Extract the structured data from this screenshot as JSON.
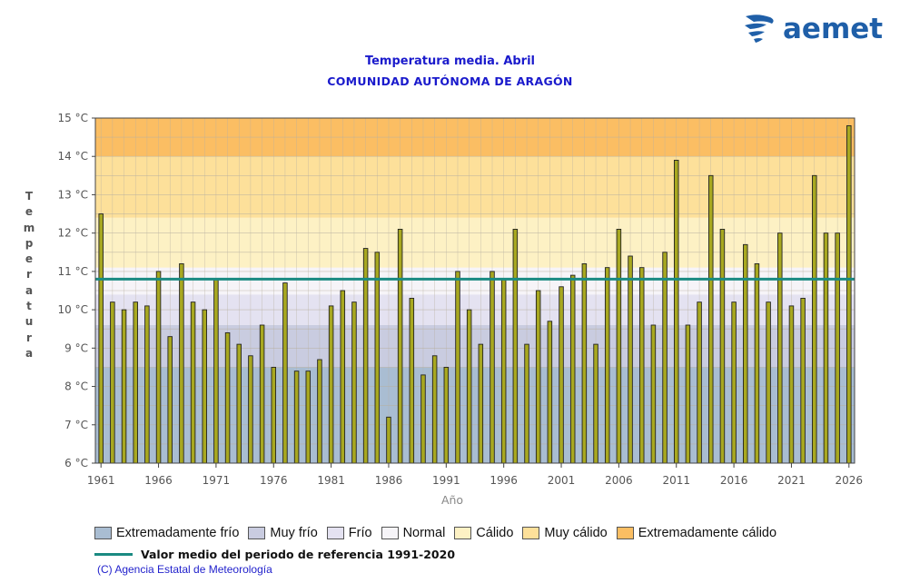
{
  "brand": {
    "name": "aemet",
    "logo_icon": "aemet-swirl-logo",
    "color": "#1f5fa8"
  },
  "chart_data": {
    "type": "bar",
    "title": "Temperatura media. Abril",
    "subtitle": "COMUNIDAD AUTÓNOMA DE ARAGÓN",
    "xlabel": "Año",
    "ylabel": "Temperatura",
    "ylim": [
      6,
      15
    ],
    "y_ticks": [
      6,
      7,
      8,
      9,
      10,
      11,
      12,
      13,
      14,
      15
    ],
    "y_tick_labels": [
      "6 °C",
      "7 °C",
      "8 °C",
      "9 °C",
      "10 °C",
      "11 °C",
      "12 °C",
      "13 °C",
      "14 °C",
      "15 °C"
    ],
    "x_ticks": [
      1961,
      1966,
      1971,
      1976,
      1981,
      1986,
      1991,
      1996,
      2001,
      2006,
      2011,
      2016,
      2021,
      2026
    ],
    "x_range": [
      1961,
      2026
    ],
    "years": [
      1961,
      1962,
      1963,
      1964,
      1965,
      1966,
      1967,
      1968,
      1969,
      1970,
      1971,
      1972,
      1973,
      1974,
      1975,
      1976,
      1977,
      1978,
      1979,
      1980,
      1981,
      1982,
      1983,
      1984,
      1985,
      1986,
      1987,
      1988,
      1989,
      1990,
      1991,
      1992,
      1993,
      1994,
      1995,
      1996,
      1997,
      1998,
      1999,
      2000,
      2001,
      2002,
      2003,
      2004,
      2005,
      2006,
      2007,
      2008,
      2009,
      2010,
      2011,
      2012,
      2013,
      2014,
      2015,
      2016,
      2017,
      2018,
      2019,
      2020,
      2021,
      2022,
      2023,
      2024,
      2025,
      2026
    ],
    "values": [
      12.5,
      10.2,
      10.0,
      10.2,
      10.1,
      11.0,
      9.3,
      11.2,
      10.2,
      10.0,
      10.8,
      9.4,
      9.1,
      8.8,
      9.6,
      8.5,
      10.7,
      8.4,
      8.4,
      8.7,
      10.1,
      10.5,
      10.2,
      11.6,
      11.5,
      7.2,
      12.1,
      10.3,
      8.3,
      8.8,
      8.5,
      11.0,
      10.0,
      9.1,
      11.0,
      10.8,
      12.1,
      9.1,
      10.5,
      9.7,
      10.6,
      10.9,
      11.2,
      9.1,
      11.1,
      12.1,
      11.4,
      11.1,
      9.6,
      11.5,
      13.9,
      9.6,
      10.2,
      13.5,
      12.1,
      10.2,
      11.7,
      11.2,
      10.2,
      12.0,
      10.1,
      10.3,
      13.5,
      12.0,
      12.0,
      14.8
    ],
    "reference_mean": 10.8,
    "bar_color": "#a8a820",
    "reference_line_color": "#1a8a82",
    "bands": [
      {
        "label": "Extremadamente frío",
        "from": 6.0,
        "to": 8.5,
        "color": "#a9bdd2"
      },
      {
        "label": "Muy frío",
        "from": 8.5,
        "to": 9.6,
        "color": "#c9cce0"
      },
      {
        "label": "Frío",
        "from": 9.6,
        "to": 10.4,
        "color": "#e4e2f1"
      },
      {
        "label": "Normal",
        "from": 10.4,
        "to": 11.1,
        "color": "#f6f4f8"
      },
      {
        "label": "Cálido",
        "from": 11.1,
        "to": 12.4,
        "color": "#fdf1c4"
      },
      {
        "label": "Muy cálido",
        "from": 12.4,
        "to": 14.0,
        "color": "#fde09a"
      },
      {
        "label": "Extremadamente cálido",
        "from": 14.0,
        "to": 15.0,
        "color": "#fbbe63"
      }
    ],
    "legend": [
      "Extremadamente frío",
      "Muy frío",
      "Frío",
      "Normal",
      "Cálido",
      "Muy cálido",
      "Extremadamente cálido"
    ],
    "grid": true
  },
  "reference_label": "Valor medio del periodo de referencia 1991-2020",
  "copyright": "(C) Agencia Estatal de Meteorología"
}
